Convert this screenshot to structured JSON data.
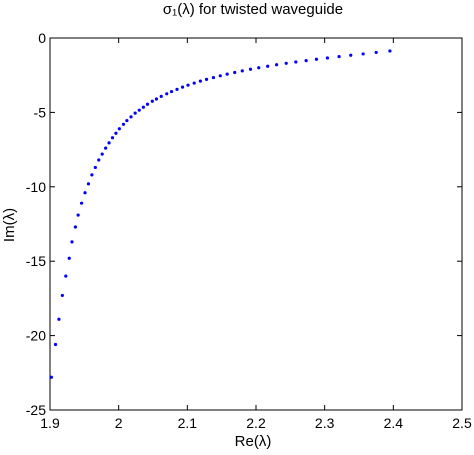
{
  "chart_data": {
    "type": "scatter",
    "title": "σ₁(λ) for twisted waveguide",
    "xlabel": "Re(λ)",
    "ylabel": "Im(λ)",
    "xlim": [
      1.9,
      2.5
    ],
    "ylim": [
      -25,
      0
    ],
    "xticks": [
      "1.9",
      "2",
      "2.1",
      "2.2",
      "2.3",
      "2.4",
      "2.5"
    ],
    "yticks": [
      "0",
      "-5",
      "-10",
      "-15",
      "-20",
      "-25"
    ],
    "grid": false,
    "marker_color": "#0000ff",
    "series": [
      {
        "name": "",
        "x": [
          1.902,
          1.908,
          1.913,
          1.918,
          1.923,
          1.928,
          1.932,
          1.937,
          1.941,
          1.946,
          1.951,
          1.956,
          1.961,
          1.966,
          1.971,
          1.976,
          1.981,
          1.986,
          1.991,
          1.996,
          2.001,
          2.007,
          2.012,
          2.018,
          2.024,
          2.03,
          2.036,
          2.042,
          2.049,
          2.055,
          2.062,
          2.07,
          2.077,
          2.085,
          2.093,
          2.101,
          2.11,
          2.119,
          2.128,
          2.138,
          2.148,
          2.158,
          2.169,
          2.18,
          2.192,
          2.204,
          2.217,
          2.23,
          2.244,
          2.258,
          2.273,
          2.288,
          2.304,
          2.321,
          2.338,
          2.356,
          2.375,
          2.395
        ],
        "y": [
          -22.8,
          -20.6,
          -18.9,
          -17.3,
          -16.0,
          -14.8,
          -13.7,
          -12.7,
          -11.9,
          -11.1,
          -10.4,
          -9.8,
          -9.2,
          -8.7,
          -8.2,
          -7.8,
          -7.4,
          -7.05,
          -6.7,
          -6.4,
          -6.1,
          -5.8,
          -5.55,
          -5.3,
          -5.05,
          -4.85,
          -4.65,
          -4.45,
          -4.25,
          -4.1,
          -3.92,
          -3.75,
          -3.6,
          -3.45,
          -3.3,
          -3.17,
          -3.03,
          -2.9,
          -2.78,
          -2.66,
          -2.54,
          -2.43,
          -2.32,
          -2.21,
          -2.1,
          -2.0,
          -1.9,
          -1.8,
          -1.7,
          -1.61,
          -1.52,
          -1.43,
          -1.34,
          -1.25,
          -1.16,
          -1.07,
          -0.97,
          -0.87
        ]
      }
    ]
  }
}
